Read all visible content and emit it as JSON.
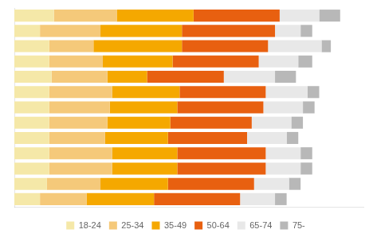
{
  "chart_data": {
    "type": "bar",
    "orientation": "horizontal",
    "stacked": true,
    "categories": [
      null,
      null,
      null,
      null,
      null,
      null,
      null,
      null,
      null,
      null,
      null,
      null,
      null
    ],
    "series": [
      {
        "name": "18-24",
        "color": "#f5e8a8",
        "values": [
          8.5,
          5.5,
          7.5,
          7.5,
          8.0,
          7.5,
          7.5,
          7.5,
          7.5,
          7.5,
          7.5,
          7.0,
          5.5
        ]
      },
      {
        "name": "25-34",
        "color": "#f5c97a",
        "values": [
          13.5,
          13.0,
          9.5,
          11.5,
          12.0,
          13.5,
          13.0,
          12.5,
          12.0,
          13.5,
          13.5,
          11.5,
          10.0
        ]
      },
      {
        "name": "35-49",
        "color": "#f5a800",
        "values": [
          16.5,
          17.5,
          19.0,
          15.0,
          8.5,
          14.5,
          14.5,
          13.5,
          13.5,
          14.0,
          14.0,
          14.5,
          14.5
        ]
      },
      {
        "name": "50-64",
        "color": "#e86010",
        "values": [
          18.5,
          20.0,
          18.5,
          18.5,
          16.5,
          18.5,
          18.5,
          17.5,
          17.0,
          19.0,
          19.0,
          18.5,
          18.5
        ]
      },
      {
        "name": "65-74",
        "color": "#e8e8e8",
        "values": [
          8.5,
          5.5,
          11.5,
          8.5,
          11.0,
          9.0,
          8.5,
          8.5,
          8.5,
          7.5,
          7.5,
          7.5,
          7.5
        ]
      },
      {
        "name": "75-",
        "color": "#b8b8b8",
        "values": [
          4.5,
          2.5,
          2.0,
          3.0,
          4.5,
          2.5,
          2.5,
          2.5,
          2.5,
          2.5,
          2.5,
          2.5,
          2.5
        ]
      }
    ],
    "xlim": [
      0,
      75
    ],
    "grid": false,
    "tick_labels": false,
    "legend": "bottom"
  }
}
